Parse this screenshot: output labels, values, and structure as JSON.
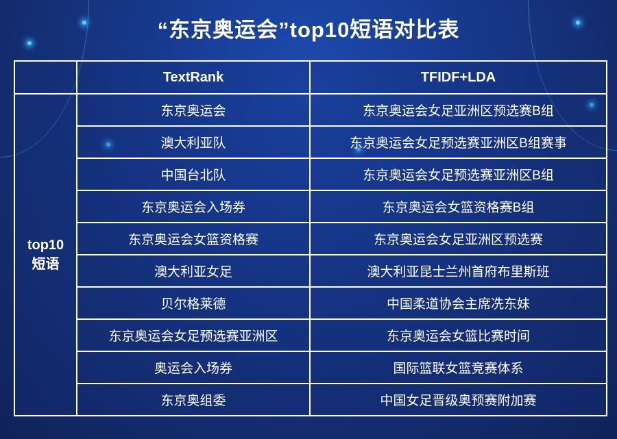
{
  "title": "“东京奥运会”top10短语对比表",
  "table": {
    "headers": [
      "",
      "TextRank",
      "TFIDF+LDA"
    ],
    "row_group_label_line1": "top10",
    "row_group_label_line2": "短语",
    "rows": [
      [
        "东京奥运会",
        "东京奥运会女足亚洲区预选赛B组"
      ],
      [
        "澳大利亚队",
        "东京奥运会女足预选赛亚洲区B组赛事"
      ],
      [
        "中国台北队",
        "东京奥运会女足预选赛亚洲区B组"
      ],
      [
        "东京奥运会入场券",
        "东京奥运会女篮资格赛B组"
      ],
      [
        "东京奥运会女篮资格赛",
        "东京奥运会女足亚洲区预选赛"
      ],
      [
        "澳大利亚女足",
        "澳大利亚昆士兰州首府布里斯班"
      ],
      [
        "贝尔格莱德",
        "中国柔道协会主席冼东妹"
      ],
      [
        "东京奥运会女足预选赛亚洲区",
        "东京奥运会女篮比赛时间"
      ],
      [
        "奥运会入场券",
        "国际篮联女篮竞赛体系"
      ],
      [
        "东京奥组委",
        "中国女足晋级奥预赛附加赛"
      ]
    ]
  },
  "colors": {
    "background": "#173a8f",
    "grid": "#ffffff",
    "text": "#ffffff"
  }
}
